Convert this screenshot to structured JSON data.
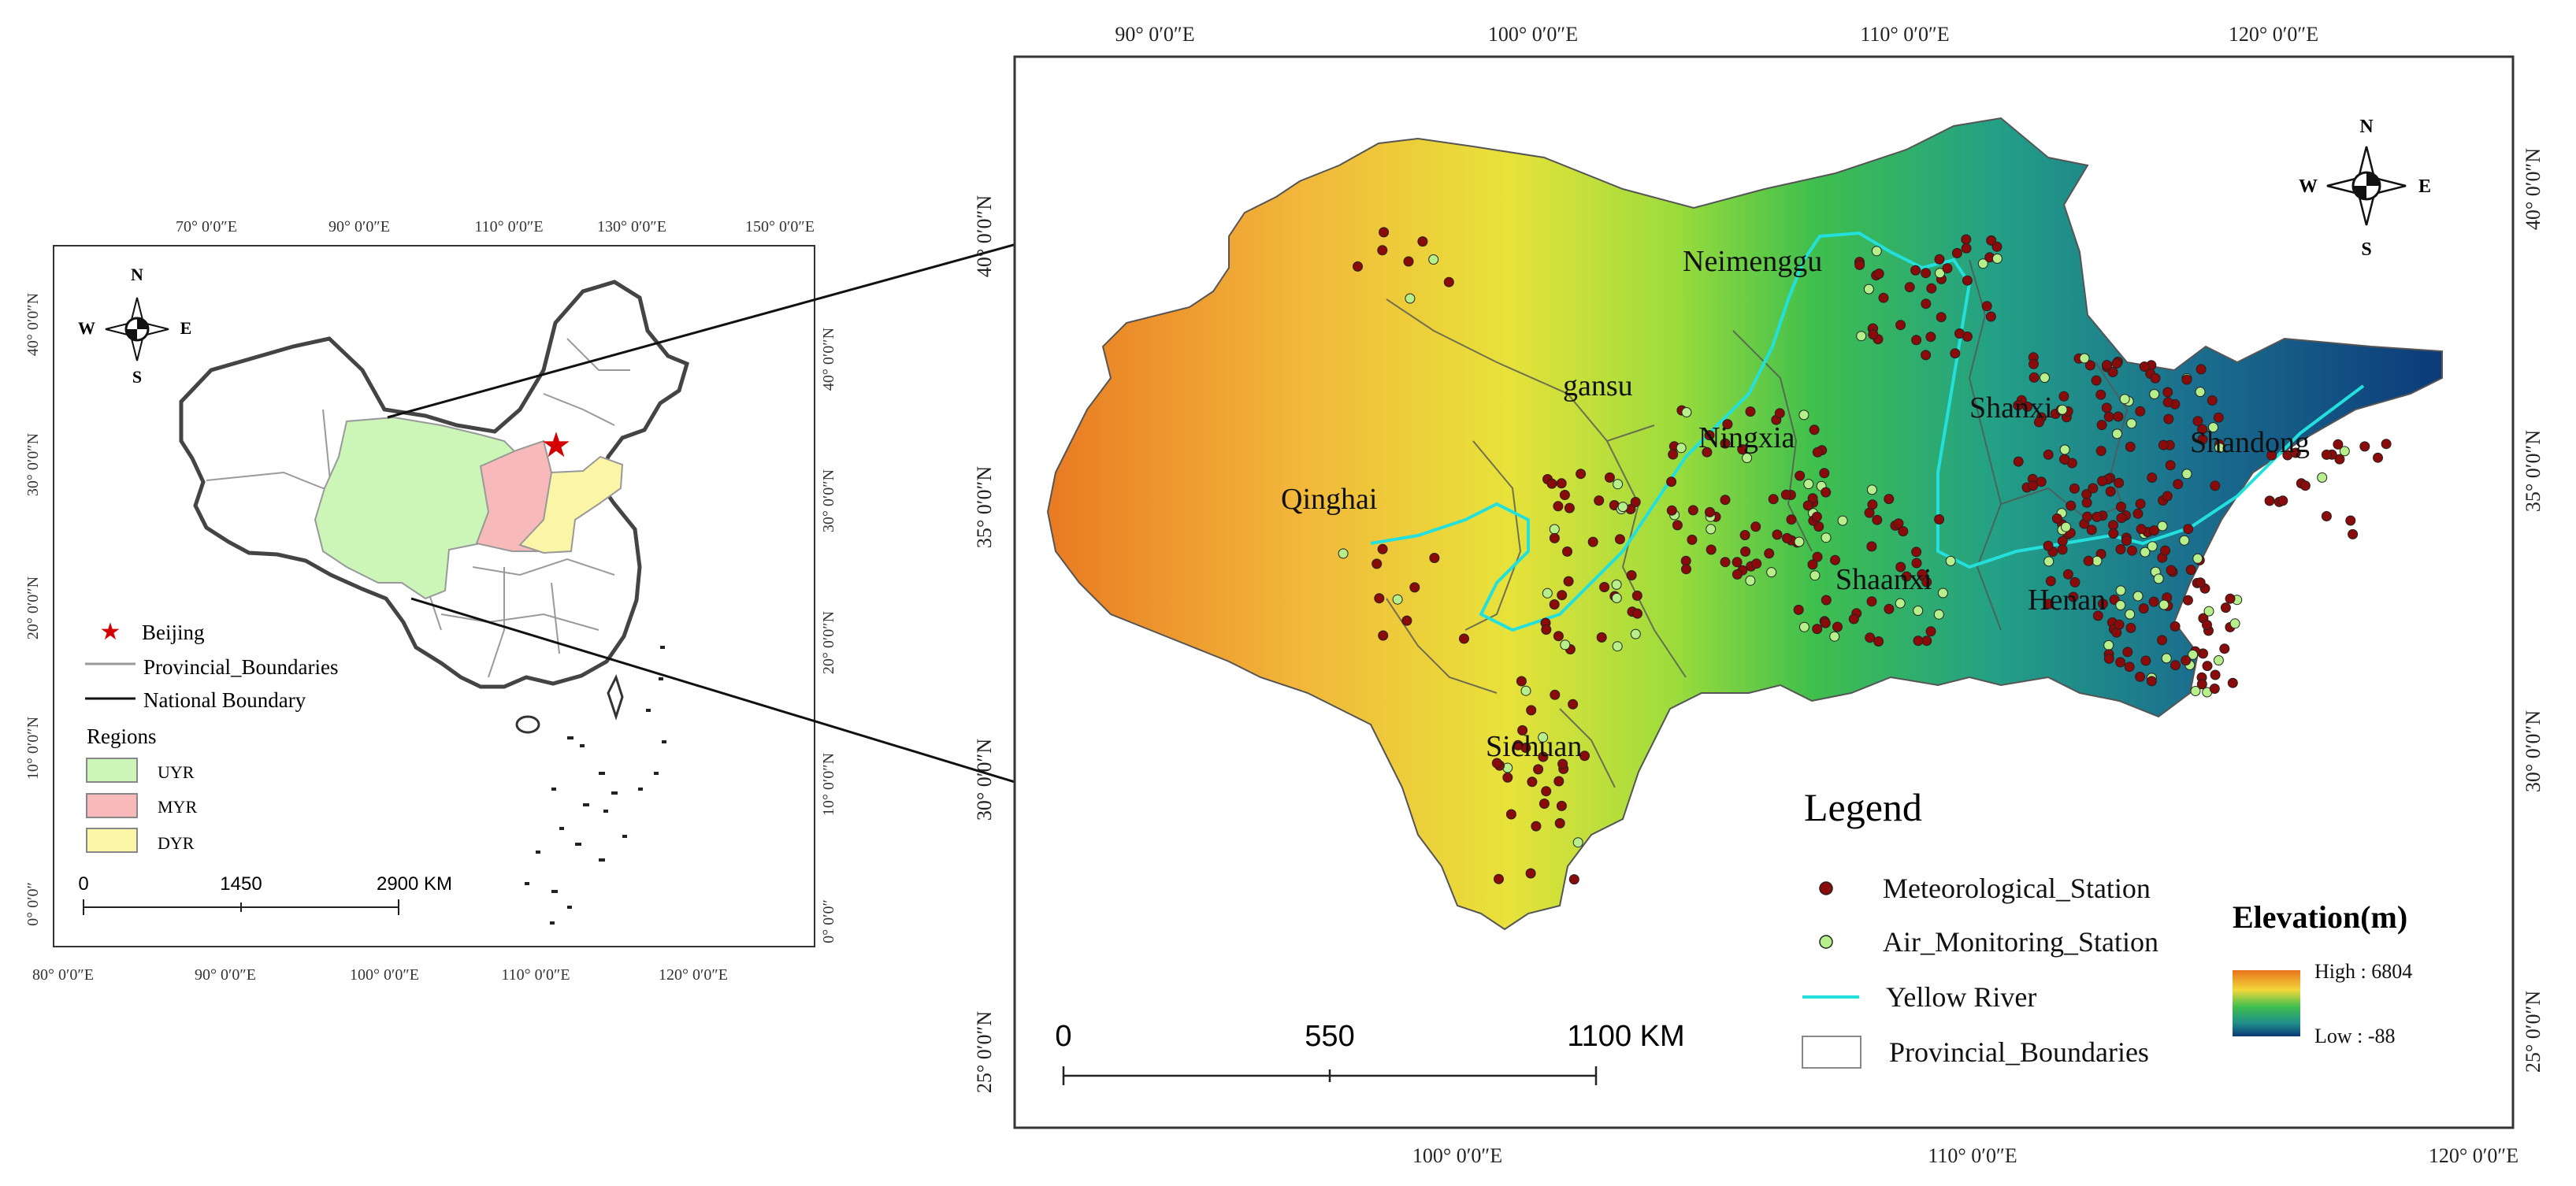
{
  "inset_map": {
    "top_ticks": [
      "70° 0′0″E",
      "90° 0′0″E",
      "110° 0′0″E",
      "130° 0′0″E",
      "150° 0′0″E"
    ],
    "bottom_ticks": [
      "80° 0′0″E",
      "90° 0′0″E",
      "100° 0′0″E",
      "110° 0′0″E",
      "120° 0′0″E"
    ],
    "left_ticks": [
      "40° 0′0″N",
      "30° 0′0″N",
      "20° 0′0″N",
      "10° 0′0″N",
      "0° 0′0″"
    ],
    "right_ticks": [
      "40° 0′0″N",
      "30° 0′0″N",
      "20° 0′0″N",
      "10° 0′0″N",
      "0° 0′0″"
    ],
    "compass": {
      "n": "N",
      "s": "S",
      "e": "E",
      "w": "W"
    },
    "legend": {
      "beijing": "Beijing",
      "provincial": "Provincial_Boundaries",
      "national": "National Boundary",
      "regions_title": "Regions",
      "regions": [
        {
          "label": "UYR",
          "color": "#ccf5b8"
        },
        {
          "label": "MYR",
          "color": "#f7b9b9"
        },
        {
          "label": "DYR",
          "color": "#fbf5a8"
        }
      ]
    },
    "scale": [
      "0",
      "1450",
      "2900 KM"
    ],
    "star_color": "#d40000"
  },
  "main_map": {
    "top_ticks": [
      "90° 0′0″E",
      "100° 0′0″E",
      "110° 0′0″E",
      "120° 0′0″E"
    ],
    "bottom_ticks": [
      "100° 0′0″E",
      "110° 0′0″E",
      "120° 0′0″E"
    ],
    "left_ticks": [
      "40° 0′0″N",
      "35° 0′0″N",
      "30° 0′0″N",
      "25° 0′0″N"
    ],
    "right_ticks": [
      "40° 0′0″N",
      "35° 0′0″N",
      "30° 0′0″N",
      "25° 0′0″N"
    ],
    "compass": {
      "n": "N",
      "s": "S",
      "e": "E",
      "w": "W"
    },
    "provinces": [
      "Qinghai",
      "gansu",
      "Neimenggu",
      "Ningxia",
      "Shanxi",
      "Shaanxi",
      "Henan",
      "Shandong",
      "Sichuan"
    ],
    "legend": {
      "title": "Legend",
      "met": "Meteorological_Station",
      "air": "Air_Monitoring_Station",
      "river": "Yellow River",
      "prov": "Provincial_Boundaries"
    },
    "elevation": {
      "title": "Elevation(m)",
      "high": "High : 6804",
      "low": "Low : -88"
    },
    "scale": [
      "0",
      "550",
      "1100 KM"
    ],
    "colors": {
      "met_station": "#8b0a0a",
      "air_station": "#b7f08a",
      "river": "#24e0dc",
      "high": "#e8731c",
      "low": "#0b3a78"
    }
  }
}
